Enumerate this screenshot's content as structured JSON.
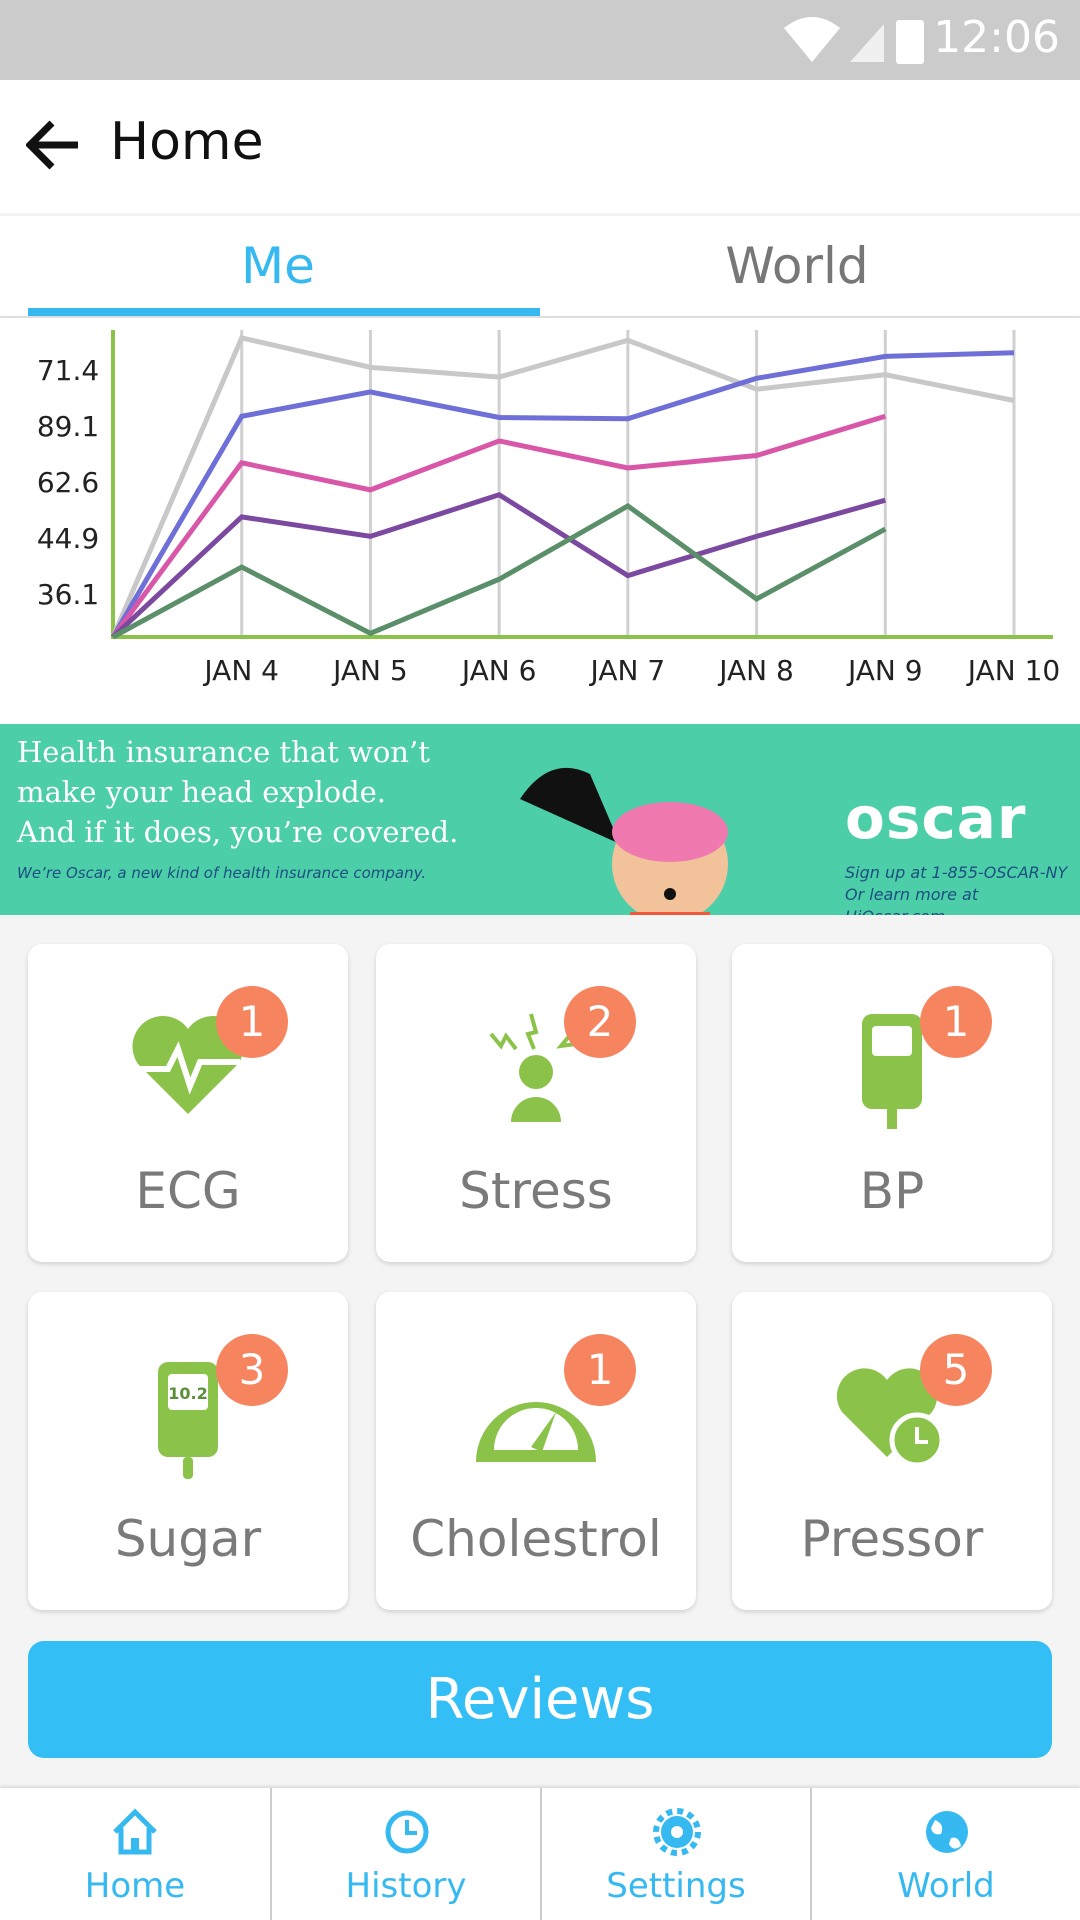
{
  "status_bar": {
    "time": "12:06"
  },
  "app_bar": {
    "title": "Home"
  },
  "tabs": [
    "Me",
    "World"
  ],
  "chart_data": {
    "type": "line",
    "y_labels": [
      "71.4",
      "89.1",
      "62.6",
      "44.9",
      "36.1"
    ],
    "categories": [
      null,
      "JAN 4",
      "JAN 5",
      "JAN 6",
      "JAN 7",
      "JAN 8",
      "JAN 9",
      "JAN 10"
    ],
    "ylim": [
      0,
      100
    ],
    "grid": true,
    "axis_color": "#8bc34a",
    "grid_color": "#d0d0d0",
    "series": [
      {
        "color": "#c8c8c8",
        "values": [
          0,
          98.4,
          88.7,
          85.5,
          97.6,
          81.5,
          86.3,
          77.8
        ]
      },
      {
        "color": "#6f6fd8",
        "values": [
          0,
          72.6,
          80.6,
          72.2,
          71.8,
          85.1,
          92.3,
          93.5
        ]
      },
      {
        "color": "#d957a8",
        "values": [
          0,
          57.3,
          48.4,
          64.5,
          55.6,
          59.7,
          72.6,
          null
        ]
      },
      {
        "color": "#7b4aa0",
        "values": [
          0,
          39.5,
          33.1,
          46.8,
          20.2,
          33.1,
          45.0,
          null
        ]
      },
      {
        "color": "#5a8f6a",
        "values": [
          0,
          23.0,
          1.2,
          19.0,
          43.1,
          12.5,
          35.5,
          null
        ]
      }
    ]
  },
  "ad": {
    "headline": [
      "Health insurance that won’t",
      "make your head explode.",
      "And if it does, you’re covered."
    ],
    "tagline": "We’re Oscar, a new kind of health insurance company.",
    "brand": "oscar",
    "contact": [
      "Sign up at 1-855-OSCAR-NY",
      "Or learn more at HiOscar.com"
    ]
  },
  "tiles": [
    {
      "label": "ECG",
      "badge": 1
    },
    {
      "label": "Stress",
      "badge": 2
    },
    {
      "label": "BP",
      "badge": 1
    },
    {
      "label": "Sugar",
      "badge": 3
    },
    {
      "label": "Cholestrol",
      "badge": 1
    },
    {
      "label": "Pressor",
      "badge": 5
    }
  ],
  "sugar_reading": "10.2",
  "button": "Reviews",
  "nav": [
    "Home",
    "History",
    "Settings",
    "World"
  ]
}
